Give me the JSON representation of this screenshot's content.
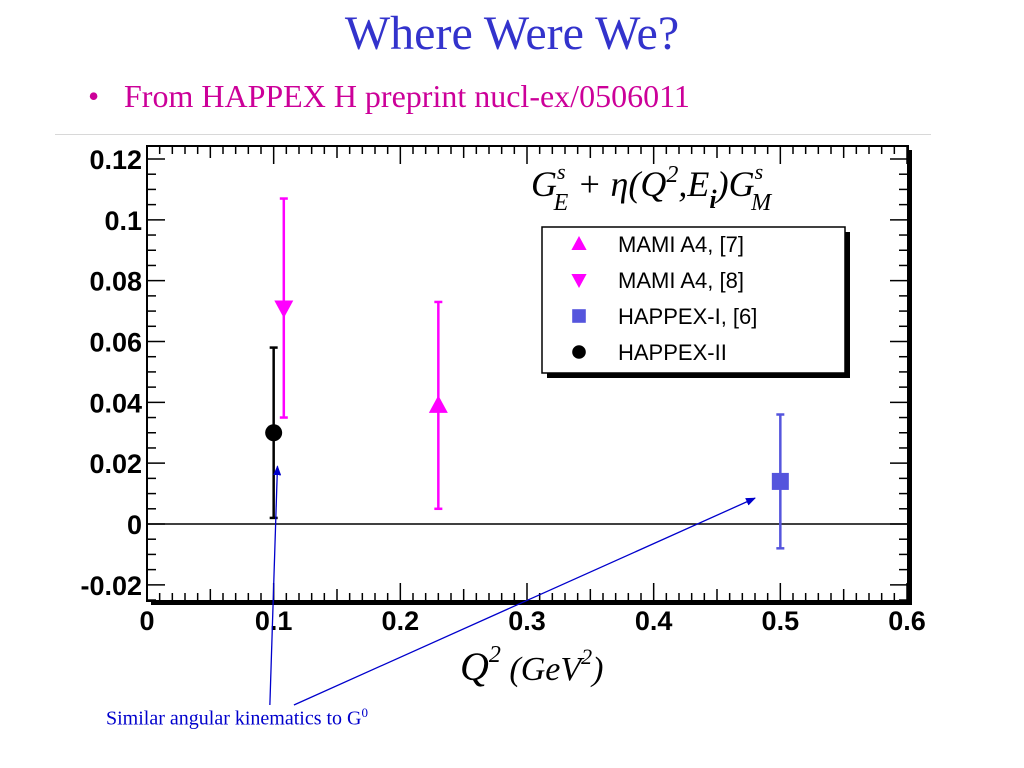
{
  "slide": {
    "title": "Where Were We?",
    "bullet_marker": "•",
    "bullet": "From HAPPEX H preprint nucl-ex/0506011"
  },
  "annotation": {
    "text": "Similar angular kinematics to G",
    "superscript": "0",
    "color": "#0000cc"
  },
  "chart_data": {
    "type": "scatter",
    "xlabel_parts": [
      "Q",
      "2",
      " (GeV",
      "2",
      ")"
    ],
    "formula_parts": [
      "G",
      "s",
      "E",
      " + η(Q",
      "2",
      ",E",
      "i",
      ")G",
      "s",
      "M"
    ],
    "xlim": [
      0,
      0.6
    ],
    "ylim": [
      -0.025,
      0.12
    ],
    "xticks": [
      "0",
      "0.1",
      "0.2",
      "0.3",
      "0.4",
      "0.5",
      "0.6"
    ],
    "xtick_values": [
      0,
      0.1,
      0.2,
      0.3,
      0.4,
      0.5,
      0.6
    ],
    "yticks": [
      "-0.02",
      "0",
      "0.02",
      "0.04",
      "0.06",
      "0.08",
      "0.1",
      "0.12"
    ],
    "ytick_values": [
      -0.02,
      0,
      0.02,
      0.04,
      0.06,
      0.08,
      0.1,
      0.12
    ],
    "zero_line": true,
    "grid": false,
    "legend_position": "top-right",
    "series": [
      {
        "name": "MAMI A4,  [7]",
        "marker": "triangle-up",
        "color": "#ff00ff",
        "points": [
          {
            "x": 0.23,
            "y": 0.039,
            "ylo": 0.005,
            "yhi": 0.073
          }
        ]
      },
      {
        "name": "MAMI A4,  [8]",
        "marker": "triangle-down",
        "color": "#ff00ff",
        "points": [
          {
            "x": 0.108,
            "y": 0.071,
            "ylo": 0.035,
            "yhi": 0.107
          }
        ]
      },
      {
        "name": "HAPPEX-I,  [6]",
        "marker": "square",
        "color": "#5555dd",
        "points": [
          {
            "x": 0.5,
            "y": 0.014,
            "ylo": -0.008,
            "yhi": 0.036
          }
        ]
      },
      {
        "name": "HAPPEX-II",
        "marker": "circle",
        "color": "#000000",
        "points": [
          {
            "x": 0.1,
            "y": 0.03,
            "ylo": 0.002,
            "yhi": 0.058
          }
        ]
      }
    ],
    "arrows": [
      {
        "color": "#0000cc",
        "from": [
          0.097,
          -0.0595
        ],
        "to": [
          0.103,
          0.019
        ]
      },
      {
        "color": "#0000cc",
        "from": [
          0.116,
          -0.0595
        ],
        "to": [
          0.48,
          0.0085
        ]
      }
    ]
  }
}
